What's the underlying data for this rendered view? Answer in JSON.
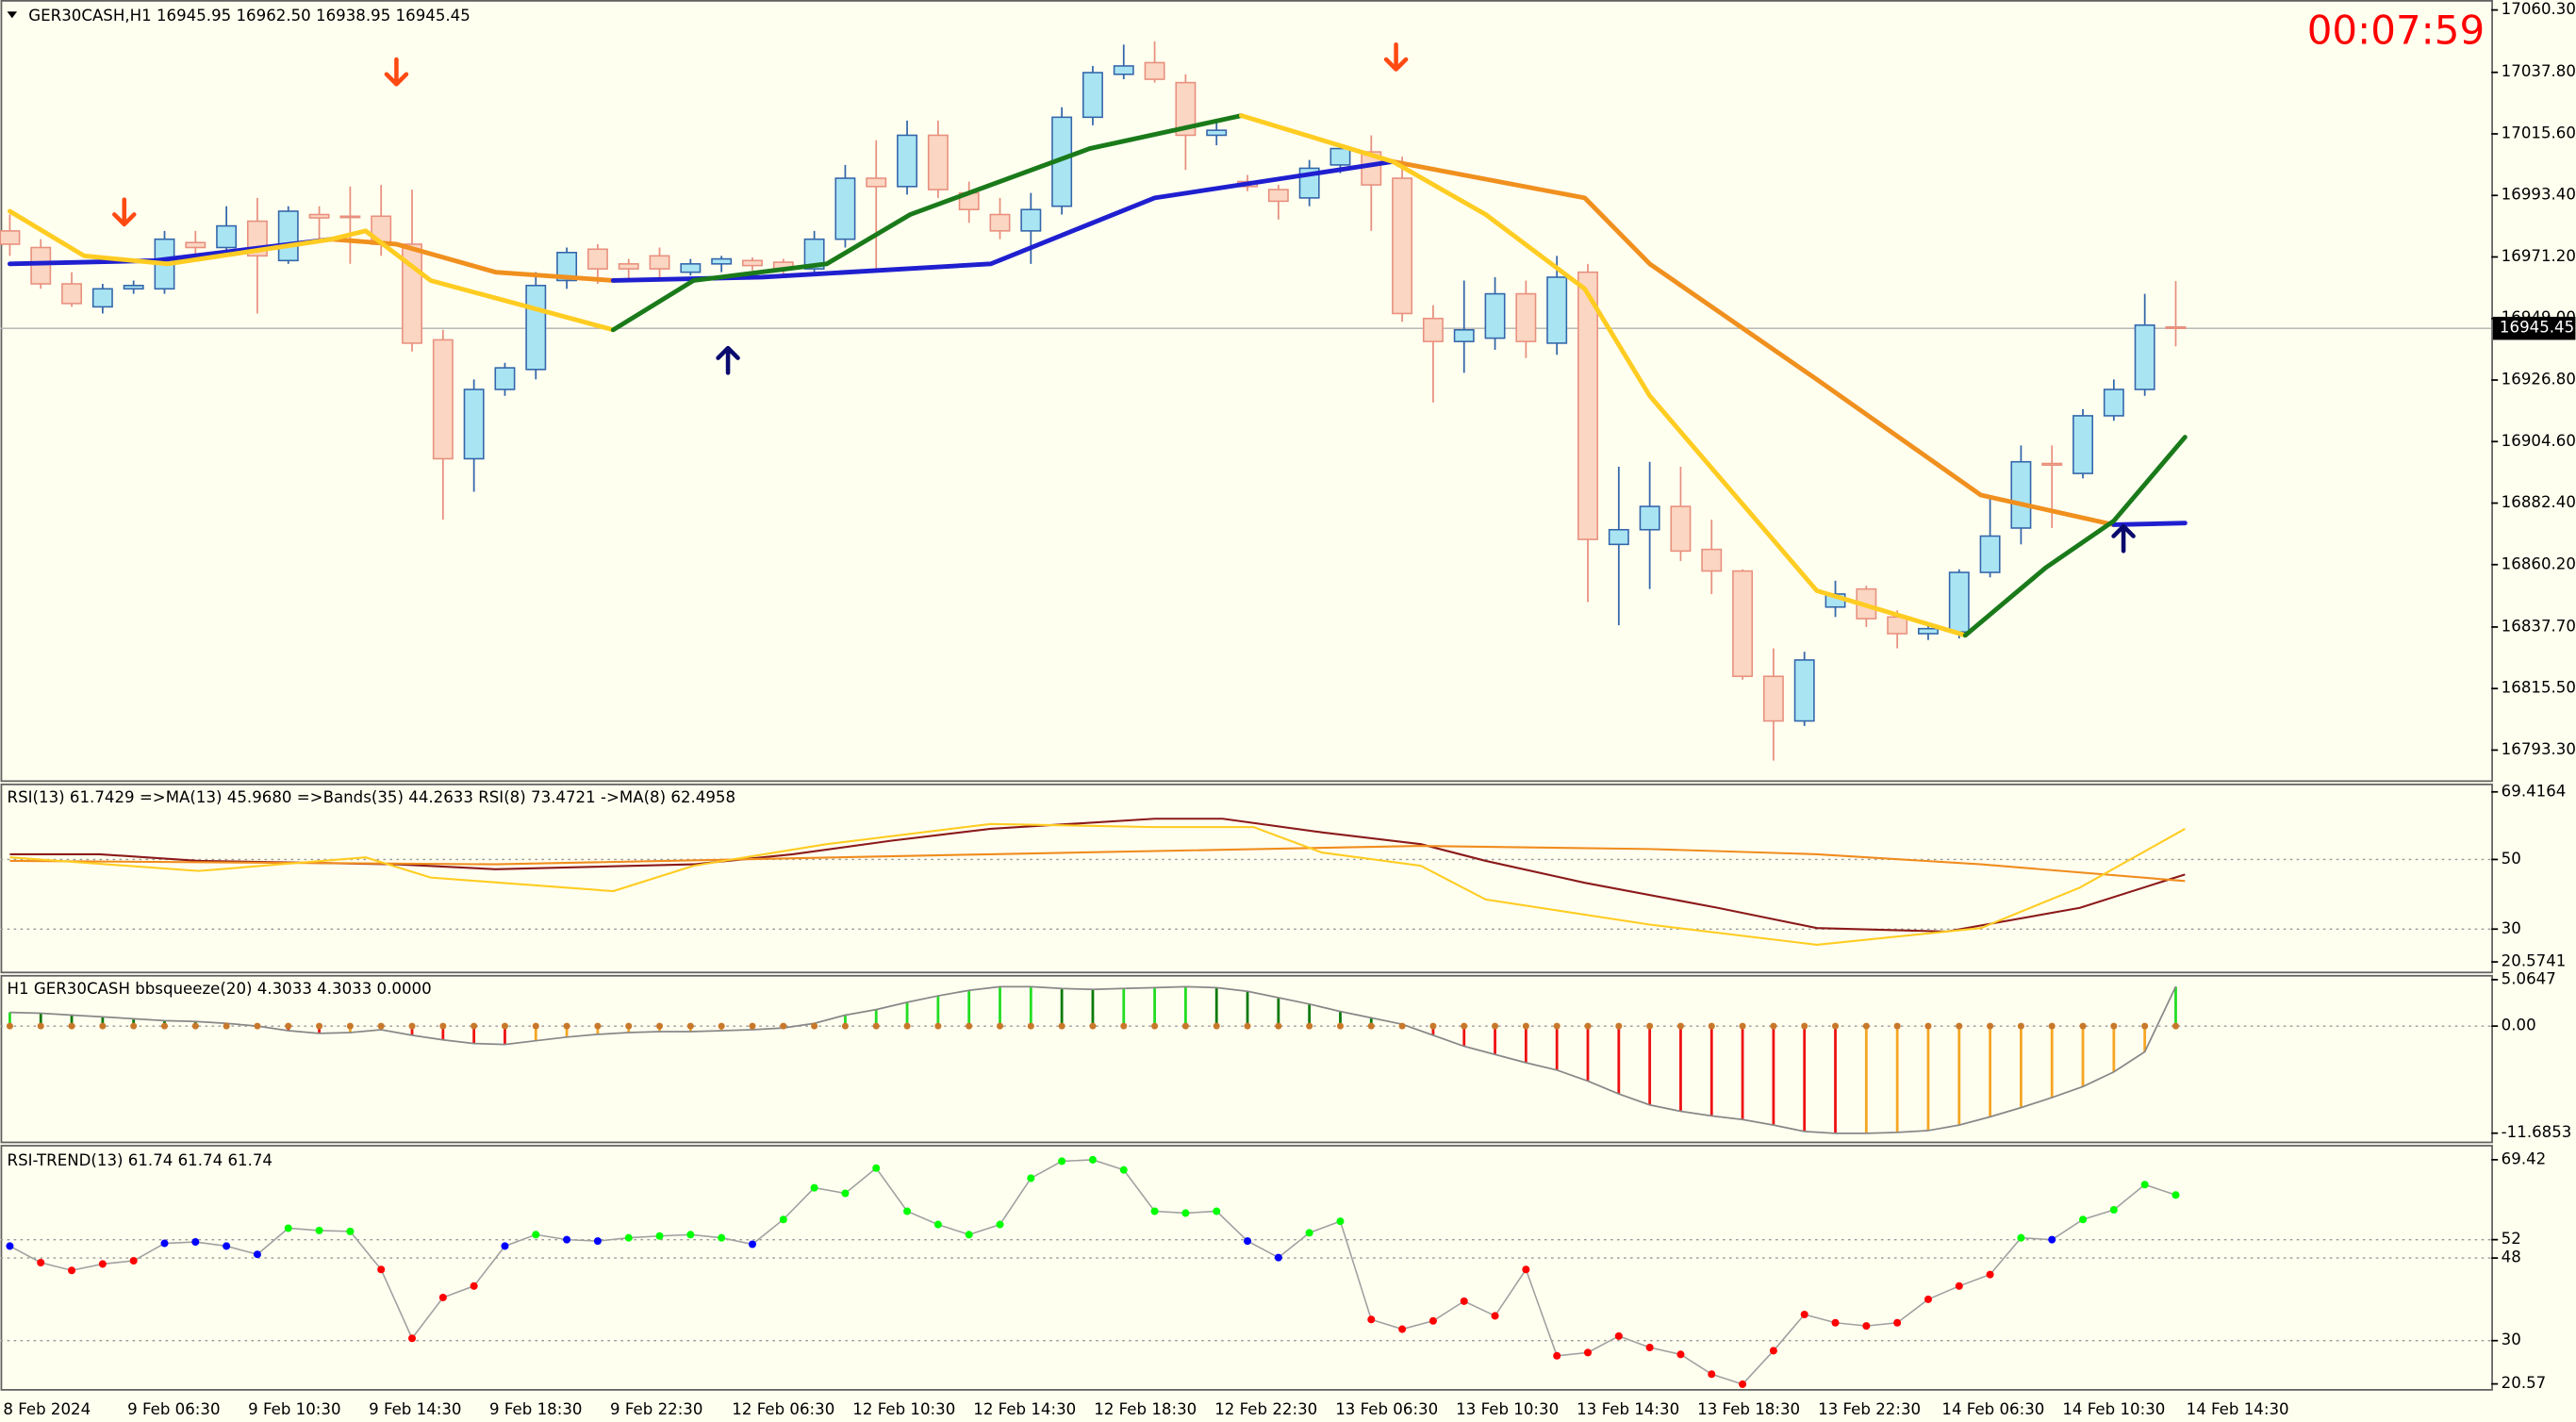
{
  "clock": "00:07:59",
  "chart_data": [
    {
      "type": "candlestick",
      "title": "GER30CASH,H1  16945.95 16962.50 16938.95 16945.45",
      "open": [
        16980.6,
        16974.6,
        16961.5,
        16953.2,
        16959.7,
        16959.7,
        16976.4,
        16974.6,
        16984.1,
        16969.9,
        16986.5,
        16985.9,
        16985.9,
        16975.8,
        16941.3,
        16898.4,
        16923.4,
        16930.6,
        16962.7,
        16974.0,
        16968.7,
        16971.6,
        16965.7,
        16968.7,
        16969.9,
        16969.3,
        16966.9,
        16977.6,
        16999.6,
        16996.6,
        17015.1,
        16994.3,
        16986.5,
        16980.6,
        16989.5,
        17021.6,
        17037.1,
        17041.3,
        17034.1,
        17015.1,
        16998.4,
        16995.5,
        16992.5,
        17004.4,
        17009.1,
        16999.6,
        16949.0,
        16940.7,
        16941.9,
        16957.9,
        16940.1,
        16965.7,
        16867.5,
        16872.8,
        16881.2,
        16865.7,
        16857.9,
        16819.9,
        16803.8,
        16844.9,
        16851.4,
        16841.3,
        16835.3,
        16835.9,
        16857.4,
        16873.4,
        16896.7,
        16893.1,
        16913.9,
        16923.4,
        16945.95
      ],
      "high": [
        16986.5,
        16977.6,
        16965.7,
        16961.5,
        16962.7,
        16980.6,
        16980.6,
        16989.5,
        16992.5,
        16989.5,
        16989.5,
        16996.6,
        16997.2,
        16995.5,
        16944.9,
        16927.0,
        16933.0,
        16965.7,
        16974.6,
        16975.8,
        16970.5,
        16974.6,
        16970.5,
        16971.6,
        16971.0,
        16970.5,
        16980.6,
        17004.4,
        17013.3,
        17020.4,
        17020.4,
        16998.4,
        16992.5,
        16994.3,
        17025.2,
        17040.1,
        17047.8,
        17049.0,
        17037.1,
        17021.0,
        17000.8,
        16997.2,
        17006.2,
        17011.5,
        17015.1,
        17007.4,
        16953.8,
        16962.7,
        16963.9,
        16962.7,
        16971.6,
        16968.7,
        16895.5,
        16897.3,
        16895.5,
        16876.4,
        16858.5,
        16830.0,
        16828.8,
        16854.4,
        16852.6,
        16843.7,
        16838.9,
        16858.5,
        16885.3,
        16903.2,
        16903.2,
        16916.3,
        16927.0,
        16957.9,
        16962.5
      ],
      "low": [
        16971.6,
        16959.7,
        16953.2,
        16950.8,
        16957.9,
        16957.9,
        16971.6,
        16972.8,
        16950.8,
        16968.7,
        16977.6,
        16968.7,
        16971.6,
        16937.1,
        16876.4,
        16886.5,
        16921.1,
        16927.0,
        16959.7,
        16961.5,
        16962.7,
        16963.9,
        16964.5,
        16965.7,
        16966.3,
        16965.1,
        16965.1,
        16974.6,
        16965.7,
        16993.7,
        16992.5,
        16983.5,
        16977.6,
        16968.7,
        16986.5,
        17018.7,
        17035.3,
        17034.1,
        17002.6,
        17011.5,
        16994.9,
        16984.7,
        16989.5,
        17001.4,
        16980.6,
        16947.8,
        16918.7,
        16929.4,
        16937.7,
        16934.7,
        16935.9,
        16846.7,
        16838.3,
        16851.4,
        16861.5,
        16849.6,
        16818.7,
        16789.5,
        16802.0,
        16841.3,
        16837.7,
        16830.0,
        16833.0,
        16833.6,
        16855.6,
        16867.5,
        16873.4,
        16891.3,
        16912.1,
        16921.1,
        16938.95
      ],
      "close": [
        16975.8,
        16961.5,
        16954.4,
        16959.7,
        16960.9,
        16977.6,
        16974.6,
        16982.4,
        16971.6,
        16987.7,
        16985.3,
        16985.6,
        16975.8,
        16940.1,
        16898.4,
        16923.4,
        16931.2,
        16960.9,
        16972.8,
        16966.9,
        16966.9,
        16966.9,
        16968.7,
        16970.5,
        16968.1,
        16966.9,
        16977.6,
        16999.6,
        16996.6,
        17015.1,
        16995.5,
        16988.3,
        16980.6,
        16988.3,
        17021.6,
        17037.7,
        17040.1,
        17035.3,
        17015.1,
        17016.9,
        16996.6,
        16991.3,
        17003.2,
        17010.3,
        16997.2,
        16950.8,
        16940.7,
        16944.9,
        16957.9,
        16940.7,
        16963.9,
        16869.3,
        16872.8,
        16881.2,
        16865.1,
        16857.9,
        16819.9,
        16803.8,
        16825.8,
        16849.6,
        16840.7,
        16835.3,
        16837.1,
        16857.4,
        16870.5,
        16897.3,
        16896.1,
        16913.9,
        16923.4,
        16946.6,
        16945.45
      ],
      "colors": {
        "up_fill": "#a9e4f3",
        "up_line": "#3366aa",
        "down_fill": "#fbd6c2",
        "down_line": "#e8907e"
      },
      "lines": [
        {
          "color": "#1f1fd0",
          "x": [
            0,
            4.7,
            10.4
          ],
          "values": [
            16968.7,
            16969.9,
            16977.6
          ]
        },
        {
          "color": "#f0901e",
          "x": [
            10.4,
            12.5,
            15.7,
            19.5
          ],
          "values": [
            16977.6,
            16975.8,
            16965.7,
            16962.7
          ]
        },
        {
          "color": "#1f1fd0",
          "x": [
            19.5,
            24.3,
            31.7,
            37.0,
            44.7
          ],
          "values": [
            16962.7,
            16963.9,
            16968.7,
            16992.5,
            17005.6
          ]
        },
        {
          "color": "#f0901e",
          "x": [
            44.7,
            50.9,
            53.0,
            58.4,
            63.7,
            68.0
          ],
          "values": [
            17005.6,
            16992.5,
            16968.7,
            16927.0,
            16885.3,
            16874.6
          ]
        },
        {
          "color": "#1f1fd0",
          "x": [
            68.0,
            70.3
          ],
          "values": [
            16874.6,
            16875.2
          ]
        },
        {
          "color": "#ffcc22",
          "x": [
            0,
            2.4,
            5.1,
            10.4,
            11.5,
            13.6,
            19.5
          ],
          "values": [
            16987.7,
            16971.6,
            16968.7,
            16977.6,
            16980.6,
            16962.7,
            16944.9
          ]
        },
        {
          "color": "#1a7a1a",
          "x": [
            19.5,
            22.1,
            26.4,
            29.1,
            34.9,
            39.8
          ],
          "values": [
            16944.9,
            16962.7,
            16968.7,
            16986.5,
            17010.3,
            17022.2
          ]
        },
        {
          "color": "#ffcc22",
          "x": [
            39.8,
            44.7,
            47.7,
            50.9,
            53.0,
            58.4,
            63.2
          ],
          "values": [
            17022.2,
            17005.6,
            16986.5,
            16959.7,
            16921.1,
            16850.8,
            16834.7
          ]
        },
        {
          "color": "#1a7a1a",
          "x": [
            63.2,
            65.8,
            68.0,
            70.3
          ],
          "values": [
            16834.7,
            16859.1,
            16876.0,
            16906.2
          ]
        }
      ],
      "current_price": 16945.45,
      "xlim": [
        -0.3,
        80.2
      ],
      "ylim": [
        16782.4,
        17063.9
      ],
      "yticks": [
        {
          "value": 17060.3,
          "label": "17060.30"
        },
        {
          "value": 17037.8,
          "label": "17037.80"
        },
        {
          "value": 17015.6,
          "label": "17015.60"
        },
        {
          "value": 16993.4,
          "label": "16993.40"
        },
        {
          "value": 16971.2,
          "label": "16971.20"
        },
        {
          "value": 16949.0,
          "label": "16949.00"
        },
        {
          "value": 16926.8,
          "label": "16926.80"
        },
        {
          "value": 16904.6,
          "label": "16904.60"
        },
        {
          "value": 16882.4,
          "label": "16882.40"
        },
        {
          "value": 16860.2,
          "label": "16860.20"
        },
        {
          "value": 16837.7,
          "label": "16837.70"
        },
        {
          "value": 16815.5,
          "label": "16815.50"
        },
        {
          "value": 16793.3,
          "label": "16793.30"
        }
      ],
      "grid": false
    },
    {
      "type": "line",
      "title": "RSI(13) 61.7429  =>MA(13) 45.9680  =>Bands(35) 44.2633  RSI(8) 73.4721  ->MA(8) 62.4958",
      "series": [
        {
          "color": "#8b1a1a",
          "x": [
            0,
            2.9,
            6.1,
            12.5,
            15.7,
            22.1,
            25.3,
            28.5,
            31.7,
            37.0,
            39.2,
            42.4,
            45.6,
            47.7,
            50.9,
            55.2,
            58.4,
            62.6,
            66.9,
            70.3
          ],
          "values": [
            51.5,
            51.5,
            49.6,
            48.6,
            47.2,
            48.6,
            51.5,
            55.4,
            58.8,
            61.7,
            61.7,
            57.8,
            54.4,
            49.6,
            43.3,
            36.1,
            30.3,
            29.3,
            36.1,
            45.7
          ]
        },
        {
          "color": "#f08c1e",
          "x": [
            0,
            15.7,
            31.7,
            45.6,
            53.0,
            58.4,
            63.7,
            70.3
          ],
          "values": [
            49.6,
            48.6,
            51.5,
            53.9,
            53.0,
            51.5,
            48.6,
            43.8
          ]
        },
        {
          "color": "#ffcc22",
          "x": [
            0,
            6.1,
            11.5,
            13.6,
            19.5,
            22.1,
            26.4,
            31.7,
            37.0,
            40.2,
            42.4,
            45.6,
            47.7,
            53.0,
            58.4,
            63.7,
            66.9,
            70.3
          ],
          "values": [
            50.6,
            46.7,
            50.6,
            44.8,
            40.9,
            48.2,
            54.4,
            60.2,
            59.3,
            59.3,
            52.0,
            48.2,
            38.5,
            31.3,
            25.5,
            30.3,
            41.9,
            58.8
          ]
        }
      ],
      "xlim": [
        -0.3,
        80.2
      ],
      "ylim": [
        17.3,
        71.8
      ],
      "yticks": [
        69.4164,
        50,
        30,
        20.5741
      ],
      "grid": true
    },
    {
      "type": "bar",
      "title": "H1 GER30CASH bbsqueeze(20) 4.3033 4.3033 0.0000",
      "values": [
        1.5,
        1.4,
        1.2,
        1.0,
        0.8,
        0.6,
        0.5,
        0.3,
        0.0,
        -0.5,
        -0.8,
        -0.7,
        -0.4,
        -1.0,
        -1.5,
        -1.9,
        -2.0,
        -1.6,
        -1.2,
        -0.9,
        -0.7,
        -0.6,
        -0.6,
        -0.5,
        -0.4,
        -0.2,
        0.3,
        1.2,
        1.8,
        2.6,
        3.3,
        3.9,
        4.3,
        4.3,
        4.1,
        4.0,
        4.1,
        4.2,
        4.3,
        4.2,
        3.8,
        3.1,
        2.4,
        1.6,
        0.9,
        0.2,
        -1.0,
        -2.2,
        -3.1,
        -4.0,
        -4.8,
        -6.0,
        -7.4,
        -8.6,
        -9.3,
        -9.8,
        -10.2,
        -10.8,
        -11.5,
        -11.7,
        -11.7,
        -11.6,
        -11.4,
        -10.8,
        -9.9,
        -8.9,
        -7.8,
        -6.6,
        -5.0,
        -2.8,
        4.3033
      ],
      "colors": {
        "pos_up": "#22dd22",
        "pos_down": "#0a7a0a",
        "neg_down": "#ee1111",
        "neg_up": "#f5a623",
        "line": "#888888",
        "dot": "#c8782a"
      },
      "xlim": [
        -0.3,
        80.2
      ],
      "ylim": [
        -12.6,
        5.4
      ],
      "yticks": [
        5.0647,
        {
          "value": 0,
          "label": "0.00"
        },
        -11.6853
      ],
      "grid": true
    },
    {
      "type": "scatter",
      "title": "RSI-TREND(13) 61.74 61.74 61.74",
      "values": [
        50.6,
        47.0,
        45.3,
        46.7,
        47.4,
        51.2,
        51.5,
        50.6,
        48.8,
        54.5,
        54.0,
        53.8,
        45.5,
        30.5,
        39.4,
        41.9,
        50.6,
        53.1,
        52.0,
        51.7,
        52.4,
        52.8,
        53.1,
        52.4,
        51.0,
        56.4,
        63.3,
        62.1,
        67.6,
        58.2,
        55.3,
        53.1,
        55.3,
        65.4,
        69.1,
        69.4,
        67.2,
        58.2,
        57.8,
        58.2,
        51.7,
        48.1,
        53.5,
        56.0,
        34.6,
        32.5,
        34.3,
        38.6,
        35.4,
        45.5,
        26.7,
        27.4,
        31.0,
        28.5,
        27.0,
        22.7,
        20.5,
        27.8,
        35.7,
        33.9,
        33.2,
        33.9,
        39.0,
        41.9,
        44.4,
        52.4,
        52.0,
        56.4,
        58.5,
        64.0,
        61.74
      ],
      "color_levels": [
        48,
        52
      ],
      "colors": {
        "low": "#ff0000",
        "mid": "#0000ff",
        "high": "#00ff00",
        "line": "#a0a0a0"
      },
      "xlim": [
        -0.3,
        80.2
      ],
      "ylim": [
        19.1,
        72.3
      ],
      "yticks": [
        69.42,
        52,
        48,
        30,
        20.57
      ],
      "grid": true,
      "xticks": [
        {
          "value": 1.2,
          "label": "8 Feb 2024"
        },
        {
          "value": 5.3,
          "label": "9 Feb 06:30"
        },
        {
          "value": 9.2,
          "label": "9 Feb 10:30"
        },
        {
          "value": 13.1,
          "label": "9 Feb 14:30"
        },
        {
          "value": 17.0,
          "label": "9 Feb 18:30"
        },
        {
          "value": 20.9,
          "label": "9 Feb 22:30"
        },
        {
          "value": 25.0,
          "label": "12 Feb 06:30"
        },
        {
          "value": 28.9,
          "label": "12 Feb 10:30"
        },
        {
          "value": 32.8,
          "label": "12 Feb 14:30"
        },
        {
          "value": 36.7,
          "label": "12 Feb 18:30"
        },
        {
          "value": 40.6,
          "label": "12 Feb 22:30"
        },
        {
          "value": 44.5,
          "label": "13 Feb 06:30"
        },
        {
          "value": 48.4,
          "label": "13 Feb 10:30"
        },
        {
          "value": 52.3,
          "label": "13 Feb 14:30"
        },
        {
          "value": 56.2,
          "label": "13 Feb 18:30"
        },
        {
          "value": 60.1,
          "label": "13 Feb 22:30"
        },
        {
          "value": 64.1,
          "label": "14 Feb 06:30"
        },
        {
          "value": 68.0,
          "label": "14 Feb 10:30"
        },
        {
          "value": 72.0,
          "label": "14 Feb 14:30"
        }
      ]
    }
  ]
}
